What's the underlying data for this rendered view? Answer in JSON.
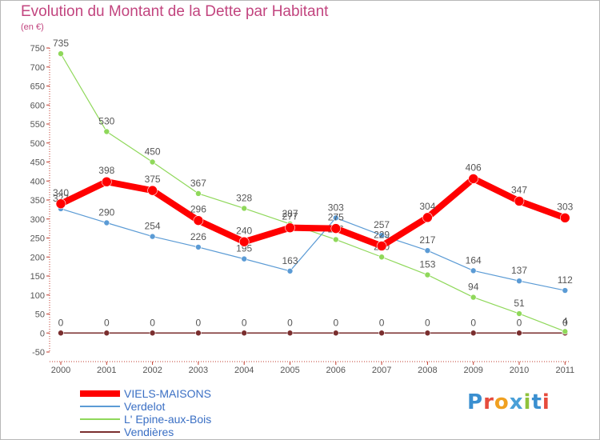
{
  "title": "Evolution du Montant de la Dette par Habitant",
  "unit_label": "(en €)",
  "logo": {
    "text": "Proxiti",
    "letters": [
      "P",
      "r",
      "o",
      "x",
      "i",
      "t",
      "i"
    ],
    "letter_colors": [
      "#3a8fd0",
      "#e64b3c",
      "#f0a020",
      "#4aa0d8",
      "#8fc23c",
      "#3a8fd0",
      "#e64b3c"
    ]
  },
  "chart_data": {
    "type": "line",
    "title": "Evolution du Montant de la Dette par Habitant",
    "ylabel": "(en €)",
    "xlabel": "",
    "x": [
      "2000",
      "2001",
      "2002",
      "2003",
      "2004",
      "2005",
      "2006",
      "2007",
      "2008",
      "2009",
      "2010",
      "2011"
    ],
    "ylim": [
      -50,
      750
    ],
    "yticks": [
      "750",
      "700",
      "650",
      "600",
      "550",
      "500",
      "450",
      "400",
      "350",
      "300",
      "250",
      "200",
      "150",
      "100",
      "50",
      "0",
      "-50"
    ],
    "ytick_values": [
      750,
      700,
      650,
      600,
      550,
      500,
      450,
      400,
      350,
      300,
      250,
      200,
      150,
      100,
      50,
      0,
      -50
    ],
    "grid": false,
    "legend_position": "bottom-left",
    "series": [
      {
        "name": "Vendières",
        "color": "#7a2e2e",
        "values": [
          0,
          0,
          0,
          0,
          0,
          0,
          0,
          0,
          0,
          0,
          0,
          0
        ],
        "labels": [
          "0",
          "0",
          "0",
          "0",
          "0",
          "0",
          "0",
          "0",
          "0",
          "0",
          "0",
          "0"
        ]
      },
      {
        "name": "L' Epine-aux-Bois",
        "color": "#8fd85a",
        "values": [
          735,
          530,
          450,
          367,
          328,
          287,
          246,
          200,
          153,
          94,
          51,
          4
        ],
        "labels": [
          "735",
          "530",
          "450",
          "367",
          "328",
          "287",
          "246",
          "200",
          "153",
          "94",
          "51",
          "4"
        ]
      },
      {
        "name": "Verdelot",
        "color": "#5b9bd5",
        "values": [
          327,
          290,
          254,
          226,
          195,
          163,
          303,
          257,
          217,
          164,
          137,
          112
        ],
        "labels": [
          "327",
          "290",
          "254",
          "226",
          "195",
          "163",
          "303",
          "257",
          "217",
          "164",
          "137",
          "112"
        ]
      },
      {
        "name": "VIELS-MAISONS",
        "color": "#ff0000",
        "values": [
          340,
          398,
          375,
          296,
          240,
          277,
          275,
          229,
          304,
          406,
          347,
          303
        ],
        "labels": [
          "340",
          "398",
          "375",
          "296",
          "240",
          "277",
          "275",
          "229",
          "304",
          "406",
          "347",
          "303"
        ]
      }
    ]
  }
}
